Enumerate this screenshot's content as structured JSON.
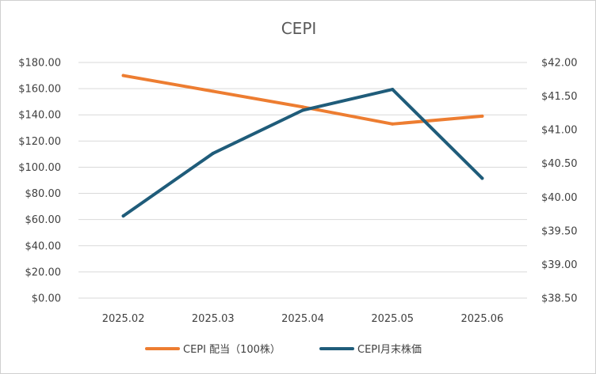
{
  "chart_data": {
    "type": "line",
    "title": "CEPI",
    "categories": [
      "2025.02",
      "2025.03",
      "2025.04",
      "2025.05",
      "2025.06"
    ],
    "y_left": {
      "min": 0,
      "max": 180,
      "step": 20,
      "tick_labels": [
        "$0.00",
        "$20.00",
        "$40.00",
        "$60.00",
        "$80.00",
        "$100.00",
        "$120.00",
        "$140.00",
        "$160.00",
        "$180.00"
      ]
    },
    "y_right": {
      "min": 38.5,
      "max": 42.0,
      "step": 0.5,
      "tick_labels": [
        "$38.50",
        "$39.00",
        "$39.50",
        "$40.00",
        "$40.50",
        "$41.00",
        "$41.50",
        "$42.00"
      ]
    },
    "series": [
      {
        "name": "CEPI 配当（100株）",
        "axis": "left",
        "color": "#ED7D31",
        "values": [
          170,
          158,
          146,
          133,
          139
        ]
      },
      {
        "name": "CEPI月末株価",
        "axis": "right",
        "color": "#1F5C7A",
        "values": [
          39.72,
          40.65,
          41.29,
          41.6,
          40.28
        ]
      }
    ],
    "grid": true,
    "legend_position": "bottom"
  }
}
